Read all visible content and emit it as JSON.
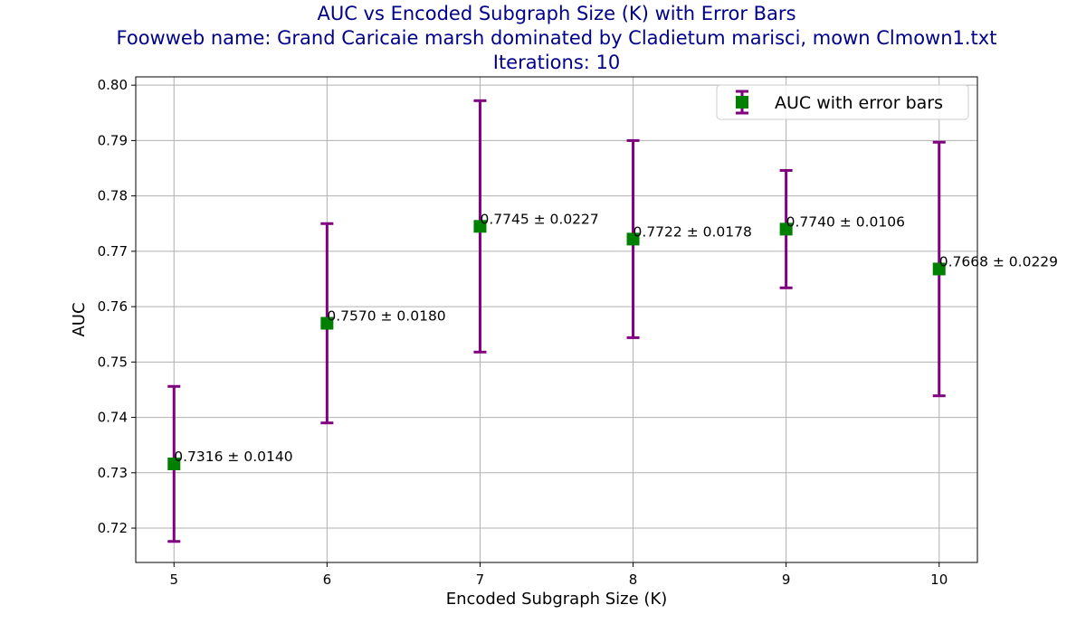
{
  "chart_data": {
    "type": "scatter",
    "title_lines": [
      "AUC vs Encoded Subgraph Size (K) with Error Bars",
      "Foowweb name: Grand Caricaie  marsh dominated by Cladietum marisci, mown  Clmown1.txt",
      "Iterations: 10"
    ],
    "xlabel": "Encoded Subgraph Size (K)",
    "ylabel": "AUC",
    "xlim": [
      4.75,
      10.25
    ],
    "ylim": [
      0.7138,
      0.8015
    ],
    "x_ticks": [
      5,
      6,
      7,
      8,
      9,
      10
    ],
    "y_ticks": [
      0.72,
      0.73,
      0.74,
      0.75,
      0.76,
      0.77,
      0.78,
      0.79,
      0.8
    ],
    "y_tick_labels": [
      "0.72",
      "0.73",
      "0.74",
      "0.75",
      "0.76",
      "0.77",
      "0.78",
      "0.79",
      "0.80"
    ],
    "grid": true,
    "legend": {
      "placement": "upper-right",
      "entries": [
        "AUC with error bars"
      ]
    },
    "series": [
      {
        "name": "AUC with error bars",
        "x": [
          5,
          6,
          7,
          8,
          9,
          10
        ],
        "y": [
          0.7316,
          0.757,
          0.7745,
          0.7722,
          0.774,
          0.7668
        ],
        "err": [
          0.014,
          0.018,
          0.0227,
          0.0178,
          0.0106,
          0.0229
        ],
        "labels": [
          "0.7316 ± 0.0140",
          "0.7570 ± 0.0180",
          "0.7745 ± 0.0227",
          "0.7722 ± 0.0178",
          "0.7740 ± 0.0106",
          "0.7668 ± 0.0229"
        ],
        "marker_color": "#008000",
        "errorbar_color": "#800080"
      }
    ]
  }
}
